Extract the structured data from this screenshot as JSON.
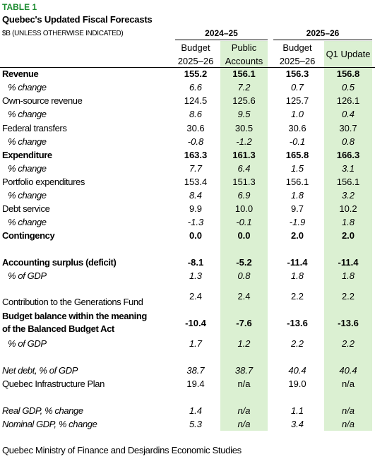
{
  "table": {
    "tag": "TABLE 1",
    "title": "Quebec's Updated Fiscal Forecasts",
    "units": "$B (UNLESS OTHERWISE INDICATED)",
    "group_headers": [
      "2024–25",
      "2025–26"
    ],
    "columns": [
      {
        "line1": "Budget",
        "line2": "2025–26"
      },
      {
        "line1": "Public",
        "line2": "Accounts"
      },
      {
        "line1": "Budget",
        "line2": "2025–26"
      },
      {
        "line1": "Q1 Update",
        "line2": ""
      }
    ],
    "rows": [
      {
        "label": "Revenue",
        "values": [
          "155.2",
          "156.1",
          "156.3",
          "156.8"
        ]
      },
      {
        "label": "% change",
        "values": [
          "6.6",
          "7.2",
          "0.7",
          "0.5"
        ]
      },
      {
        "label": "Own-source revenue",
        "values": [
          "124.5",
          "125.6",
          "125.7",
          "126.1"
        ]
      },
      {
        "label": "% change",
        "values": [
          "8.6",
          "9.5",
          "1.0",
          "0.4"
        ]
      },
      {
        "label": "Federal transfers",
        "values": [
          "30.6",
          "30.5",
          "30.6",
          "30.7"
        ]
      },
      {
        "label": "% change",
        "values": [
          "-0.8",
          "-1.2",
          "-0.1",
          "0.8"
        ]
      },
      {
        "label": "Expenditure",
        "values": [
          "163.3",
          "161.3",
          "165.8",
          "166.3"
        ]
      },
      {
        "label": "% change",
        "values": [
          "7.7",
          "6.4",
          "1.5",
          "3.1"
        ]
      },
      {
        "label": "Portfolio expenditures",
        "values": [
          "153.4",
          "151.3",
          "156.1",
          "156.1"
        ]
      },
      {
        "label": "% change",
        "values": [
          "8.4",
          "6.9",
          "1.8",
          "3.2"
        ]
      },
      {
        "label": "Debt service",
        "values": [
          "9.9",
          "10.0",
          "9.7",
          "10.2"
        ]
      },
      {
        "label": "% change",
        "values": [
          "-1.3",
          "-0.1",
          "-1.9",
          "1.8"
        ]
      },
      {
        "label": "Contingency",
        "values": [
          "0.0",
          "0.0",
          "2.0",
          "2.0"
        ]
      },
      {
        "label": "Accounting surplus (deficit)",
        "values": [
          "-8.1",
          "-5.2",
          "-11.4",
          "-11.4"
        ]
      },
      {
        "label": "% of GDP",
        "values": [
          "1.3",
          "0.8",
          "1.8",
          "1.8"
        ]
      },
      {
        "label": "Contribution to the Generations Fund",
        "values": [
          "2.4",
          "2.4",
          "2.2",
          "2.2"
        ]
      },
      {
        "label": "Budget balance within the meaning",
        "label2": "of the Balanced Budget Act",
        "values": [
          "-10.4",
          "-7.6",
          "-13.6",
          "-13.6"
        ]
      },
      {
        "label": "% of GDP",
        "values": [
          "1.7",
          "1.2",
          "2.2",
          "2.2"
        ]
      },
      {
        "label": "Net debt, % of GDP",
        "values": [
          "38.7",
          "38.7",
          "40.4",
          "40.4"
        ]
      },
      {
        "label": "Quebec Infrastructure Plan",
        "values": [
          "19.4",
          "n/a",
          "19.0",
          "n/a"
        ]
      },
      {
        "label": "Real GDP, % change",
        "values": [
          "1.4",
          "n/a",
          "1.1",
          "n/a"
        ]
      },
      {
        "label": "Nominal GDP, % change",
        "values": [
          "5.3",
          "n/a",
          "3.4",
          "n/a"
        ]
      }
    ],
    "source": "Quebec Ministry of Finance and Desjardins Economic Studies",
    "colors": {
      "tag": "#1a8a2e",
      "shade": "#dbf0d2"
    }
  }
}
